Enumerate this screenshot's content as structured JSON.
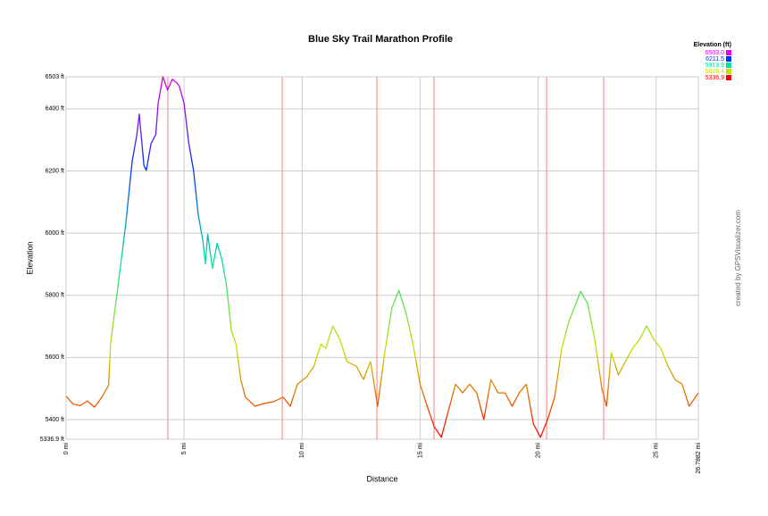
{
  "chart_data": {
    "type": "line",
    "title": "Blue Sky Trail Marathon Profile",
    "xlabel": "Distance",
    "ylabel": "Elevation",
    "credit": "created by GPSVisualizer.com",
    "x": [
      0,
      0.3,
      0.6,
      0.9,
      1.2,
      1.5,
      1.8,
      1.89,
      2.2,
      2.53,
      2.8,
      3.0,
      3.1,
      3.3,
      3.4,
      3.6,
      3.8,
      3.9,
      4.1,
      4.3,
      4.5,
      4.7,
      4.8,
      5.0,
      5.2,
      5.4,
      5.6,
      5.8,
      5.9,
      6.0,
      6.2,
      6.4,
      6.6,
      6.8,
      7.0,
      7.2,
      7.4,
      7.6,
      8.0,
      8.4,
      8.8,
      9.2,
      9.5,
      9.8,
      10.2,
      10.5,
      10.8,
      11.0,
      11.3,
      11.6,
      11.9,
      12.3,
      12.6,
      12.9,
      13.2,
      13.5,
      13.8,
      14.1,
      14.4,
      14.7,
      15.0,
      15.3,
      15.6,
      15.9,
      16.2,
      16.5,
      16.8,
      17.1,
      17.4,
      17.7,
      18.0,
      18.3,
      18.6,
      18.9,
      19.2,
      19.5,
      19.8,
      20.1,
      20.4,
      20.7,
      21.0,
      21.3,
      21.6,
      21.8,
      22.1,
      22.4,
      22.7,
      22.9,
      23.1,
      23.4,
      23.7,
      24.0,
      24.3,
      24.6,
      24.9,
      25.2,
      25.5,
      25.8,
      26.1,
      26.4,
      26.7882
    ],
    "values": [
      5475,
      5450,
      5445,
      5460,
      5440,
      5470,
      5510,
      5649,
      5830,
      6030,
      6231,
      6317,
      6383,
      6217,
      6202,
      6288,
      6317,
      6417,
      6503,
      6460,
      6495,
      6483,
      6472,
      6417,
      6288,
      6202,
      6059,
      5973,
      5901,
      5996,
      5887,
      5967,
      5916,
      5830,
      5687,
      5643,
      5529,
      5472,
      5443,
      5452,
      5458,
      5472,
      5443,
      5514,
      5538,
      5572,
      5643,
      5629,
      5701,
      5658,
      5587,
      5572,
      5529,
      5587,
      5443,
      5615,
      5758,
      5816,
      5744,
      5643,
      5514,
      5443,
      5377,
      5343,
      5429,
      5514,
      5486,
      5514,
      5486,
      5400,
      5529,
      5486,
      5486,
      5443,
      5486,
      5514,
      5386,
      5343,
      5400,
      5472,
      5629,
      5715,
      5773,
      5813,
      5773,
      5658,
      5500,
      5443,
      5615,
      5544,
      5587,
      5629,
      5658,
      5701,
      5658,
      5629,
      5572,
      5529,
      5514,
      5443,
      5486
    ],
    "xlim": [
      0,
      26.7882
    ],
    "ylim": [
      5336.9,
      6503
    ],
    "xticks": [
      {
        "value": 0,
        "label": "0 mi"
      },
      {
        "value": 5,
        "label": "5 mi"
      },
      {
        "value": 10,
        "label": "10 mi"
      },
      {
        "value": 15,
        "label": "15 mi"
      },
      {
        "value": 20,
        "label": "20 mi"
      },
      {
        "value": 25,
        "label": "25 mi"
      },
      {
        "value": 26.7882,
        "label": "26.7882 mi"
      }
    ],
    "yticks": [
      {
        "value": 5336.9,
        "label": "5336.9 ft"
      },
      {
        "value": 5400,
        "label": "5400 ft"
      },
      {
        "value": 5600,
        "label": "5600 ft"
      },
      {
        "value": 5800,
        "label": "5800 ft"
      },
      {
        "value": 6000,
        "label": "6000 ft"
      },
      {
        "value": 6200,
        "label": "6200 ft"
      },
      {
        "value": 6400,
        "label": "6400 ft"
      },
      {
        "value": 6503,
        "label": "6503 ft"
      }
    ],
    "grid": true,
    "markers": [
      4.31,
      9.16,
      13.17,
      15.59,
      20.36,
      22.78
    ],
    "marker_color": "#f08080",
    "legend_position": "top-right",
    "legend": {
      "title": "Elevation (ft)",
      "entries": [
        {
          "value": 6503.0,
          "label": "6503.0",
          "color": "#e000e0"
        },
        {
          "value": 6211.5,
          "label": "6211.5",
          "color": "#0030ff"
        },
        {
          "value": 5919.9,
          "label": "5919.9",
          "color": "#00e0a0"
        },
        {
          "value": 5628.4,
          "label": "5628.4",
          "color": "#c8e000"
        },
        {
          "value": 5336.9,
          "label": "5336.9",
          "color": "#ff0000"
        }
      ]
    }
  }
}
